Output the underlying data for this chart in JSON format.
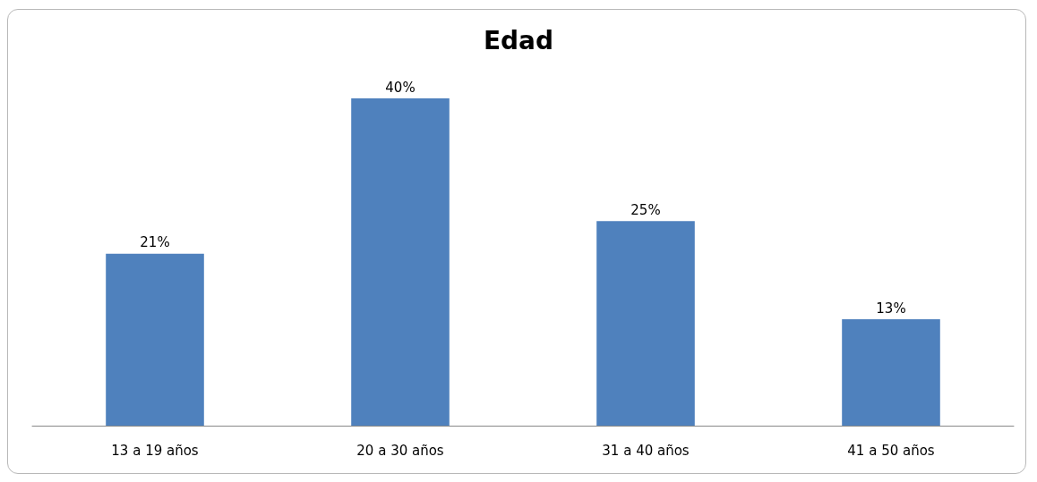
{
  "chart_data": {
    "type": "bar",
    "title": "Edad",
    "categories": [
      "13 a 19 años",
      "20 a 30 años",
      "31 a 40 años",
      "41 a 50 años"
    ],
    "values": [
      21,
      40,
      25,
      13
    ],
    "value_labels": [
      "21%",
      "40%",
      "25%",
      "13%"
    ],
    "color": "#4f81bd"
  }
}
